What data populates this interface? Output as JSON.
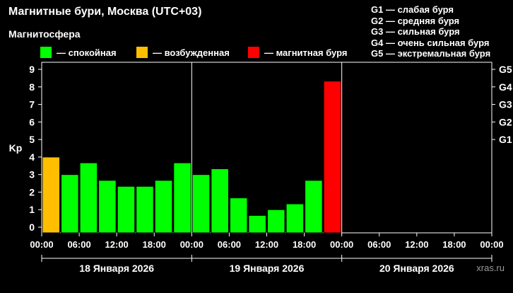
{
  "header": {
    "title": "Магнитные бури, Москва (UTC+03)",
    "subtitle": "Магнитосфера"
  },
  "legend": [
    {
      "label": "— спокойная",
      "color": "#00ff00"
    },
    {
      "label": "— возбужденная",
      "color": "#ffbf00"
    },
    {
      "label": "— магнитная буря",
      "color": "#ff0000"
    }
  ],
  "g_scale": [
    "G1 — слабая буря",
    "G2 — средняя буря",
    "G3 — сильная буря",
    "G4 — очень сильная буря",
    "G5 — экстремальная буря"
  ],
  "watermark": "xras.ru",
  "chart_data": {
    "type": "bar",
    "ylabel": "Kp",
    "ylim": [
      0,
      9
    ],
    "y_ticks": [
      "0",
      "1",
      "2",
      "3",
      "4",
      "5",
      "6",
      "7",
      "8",
      "9"
    ],
    "right_ticks": [
      {
        "label": "G1",
        "value": 5
      },
      {
        "label": "G2",
        "value": 6
      },
      {
        "label": "G3",
        "value": 7
      },
      {
        "label": "G4",
        "value": 8
      },
      {
        "label": "G5",
        "value": 9
      }
    ],
    "x_tick_labels": [
      "00:00",
      "06:00",
      "12:00",
      "18:00",
      "00:00",
      "06:00",
      "12:00",
      "18:00",
      "00:00",
      "06:00",
      "12:00",
      "18:00",
      "00:00"
    ],
    "days": [
      "18 Января 2026",
      "19 Января 2026",
      "20 Января 2026"
    ],
    "bars_per_day": 8,
    "values": [
      4.0,
      3.0,
      3.67,
      2.67,
      2.33,
      2.33,
      2.67,
      3.67,
      3.0,
      3.33,
      1.67,
      0.67,
      1.0,
      1.33,
      2.67,
      8.33
    ],
    "bar_colors": [
      "#ffbf00",
      "#00ff00",
      "#00ff00",
      "#00ff00",
      "#00ff00",
      "#00ff00",
      "#00ff00",
      "#00ff00",
      "#00ff00",
      "#00ff00",
      "#00ff00",
      "#00ff00",
      "#00ff00",
      "#00ff00",
      "#00ff00",
      "#ff0000"
    ]
  }
}
